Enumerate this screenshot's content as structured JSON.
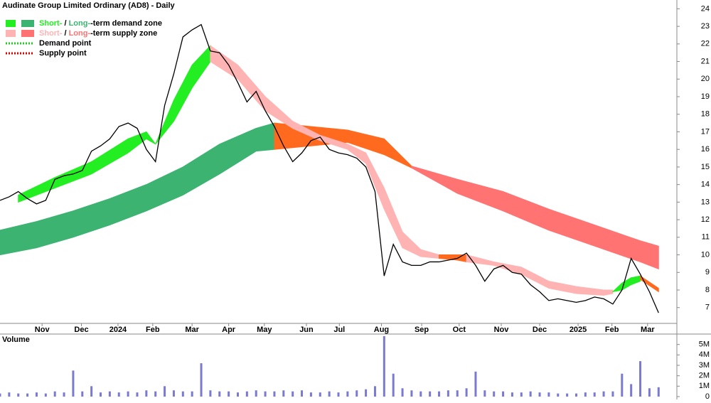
{
  "chart_data": [
    {
      "type": "line",
      "title": "Audinate Group Limited Ordinary (AD8) - Daily",
      "x": [
        0,
        1,
        2,
        3,
        4,
        5,
        6,
        7,
        8,
        9,
        10,
        11,
        12,
        13,
        14,
        15,
        16,
        17,
        18,
        19,
        20,
        21,
        22,
        23,
        24,
        25,
        26,
        27,
        28,
        29,
        30,
        31,
        32,
        33,
        34,
        35,
        36,
        37,
        38,
        39,
        40,
        41,
        42,
        43,
        44,
        45,
        46,
        47,
        48,
        49,
        50,
        51,
        52,
        53,
        54,
        55,
        56,
        57,
        58,
        59,
        60,
        61,
        62,
        63,
        64,
        65,
        66,
        67,
        68,
        69,
        70,
        71,
        72
      ],
      "values": [
        13.1,
        13.3,
        13.6,
        13.2,
        12.9,
        13.1,
        14.3,
        14.5,
        14.6,
        14.8,
        15.9,
        16.2,
        16.6,
        17.3,
        17.5,
        17.2,
        16.0,
        15.3,
        18.5,
        20.3,
        22.4,
        22.8,
        23.1,
        21.6,
        21.5,
        20.8,
        19.8,
        18.7,
        19.3,
        18.2,
        17.3,
        16.2,
        15.3,
        15.8,
        16.5,
        16.7,
        16.0,
        15.8,
        15.7,
        15.5,
        15.0,
        13.6,
        8.8,
        10.6,
        9.6,
        9.4,
        9.4,
        9.6,
        9.6,
        9.7,
        9.8,
        10.1,
        9.4,
        8.5,
        9.2,
        9.4,
        9.0,
        8.9,
        8.3,
        7.9,
        7.4,
        7.5,
        7.4,
        7.3,
        7.4,
        7.6,
        7.5,
        7.2,
        8.0,
        9.8,
        8.9,
        7.9,
        6.7
      ],
      "color": "#000000",
      "xlim": [
        0,
        74
      ],
      "ylim": [
        6.1,
        24.5
      ],
      "yticks": [
        7,
        8,
        9,
        10,
        11,
        12,
        13,
        14,
        15,
        16,
        17,
        18,
        19,
        20,
        21,
        22,
        23,
        24
      ],
      "xticks": [
        {
          "value": 4.6,
          "label": "Nov"
        },
        {
          "value": 8.9,
          "label": "Dec"
        },
        {
          "value": 12.9,
          "label": "2024"
        },
        {
          "value": 16.7,
          "label": "Feb"
        },
        {
          "value": 21.0,
          "label": "Mar"
        },
        {
          "value": 25.0,
          "label": "Apr"
        },
        {
          "value": 28.9,
          "label": "May"
        },
        {
          "value": 33.5,
          "label": "Jun"
        },
        {
          "value": 37.1,
          "label": "Jul"
        },
        {
          "value": 41.7,
          "label": "Aug"
        },
        {
          "value": 46.1,
          "label": "Sep"
        },
        {
          "value": 50.2,
          "label": "Oct"
        },
        {
          "value": 54.8,
          "label": "Nov"
        },
        {
          "value": 59.0,
          "label": "Dec"
        },
        {
          "value": 63.2,
          "label": "2025"
        },
        {
          "value": 66.9,
          "label": "Feb"
        },
        {
          "value": 70.8,
          "label": "Mar"
        }
      ],
      "zones": [
        {
          "color": "#3cb371",
          "x": [
            0,
            4,
            8,
            12,
            16,
            20,
            24,
            28,
            30
          ],
          "upper": [
            11.4,
            11.9,
            12.5,
            13.2,
            14.0,
            15.0,
            16.3,
            17.2,
            17.5
          ],
          "lower": [
            10.0,
            10.4,
            11.0,
            11.7,
            12.5,
            13.4,
            14.6,
            15.9,
            16.0
          ]
        },
        {
          "color": "#ff6a1f",
          "x": [
            30,
            34,
            38,
            42,
            45
          ],
          "upper": [
            17.5,
            17.3,
            17.1,
            16.6,
            15.05
          ],
          "lower": [
            16.0,
            16.2,
            16.4,
            15.7,
            14.95
          ]
        },
        {
          "color": "#ff7373",
          "x": [
            45,
            50,
            55,
            60,
            65,
            70,
            72
          ],
          "upper": [
            15.05,
            14.3,
            13.6,
            12.6,
            11.7,
            10.8,
            10.5
          ],
          "lower": [
            14.95,
            13.5,
            12.5,
            11.4,
            10.5,
            9.6,
            9.2
          ]
        },
        {
          "color": "#22ee22",
          "x": [
            2,
            6,
            10,
            14,
            16,
            17
          ],
          "upper": [
            13.4,
            14.4,
            15.3,
            16.6,
            17.0,
            16.3
          ],
          "lower": [
            13.0,
            13.8,
            14.6,
            15.8,
            16.6,
            16.3
          ]
        },
        {
          "color": "#22ee22",
          "x": [
            17,
            19,
            21,
            23
          ],
          "upper": [
            16.3,
            18.8,
            20.8,
            21.9
          ],
          "lower": [
            16.3,
            17.6,
            19.5,
            21.0
          ]
        },
        {
          "color": "#ffb3b3",
          "x": [
            23,
            26,
            29,
            32,
            35,
            38,
            40,
            42,
            44,
            46,
            48
          ],
          "upper": [
            21.9,
            20.8,
            19.0,
            17.6,
            16.8,
            16.3,
            15.8,
            13.8,
            11.3,
            10.3,
            10.0
          ],
          "lower": [
            21.0,
            20.0,
            18.2,
            17.2,
            16.5,
            16.0,
            15.2,
            12.6,
            10.4,
            9.9,
            9.8
          ]
        },
        {
          "color": "#ff6a1f",
          "x": [
            48,
            50,
            51
          ],
          "upper": [
            10.0,
            10.0,
            10.0
          ],
          "lower": [
            9.8,
            9.7,
            9.6
          ]
        },
        {
          "color": "#ffb3b3",
          "x": [
            51,
            54,
            57,
            60,
            63,
            66,
            67
          ],
          "upper": [
            10.0,
            9.6,
            9.3,
            8.5,
            8.2,
            8.0,
            8.0
          ],
          "lower": [
            9.6,
            9.4,
            8.9,
            8.1,
            7.8,
            7.7,
            7.8
          ]
        },
        {
          "color": "#22ee22",
          "x": [
            67,
            68,
            69,
            70
          ],
          "upper": [
            7.9,
            8.4,
            8.7,
            8.8
          ],
          "lower": [
            7.9,
            8.0,
            8.3,
            8.5
          ]
        },
        {
          "color": "#ff6a1f",
          "x": [
            70,
            72
          ],
          "upper": [
            8.8,
            8.1
          ],
          "lower": [
            8.6,
            7.9
          ]
        }
      ],
      "legend": [
        {
          "short": "Short-",
          "sep": " / ",
          "long": "Long-",
          "text": "-term demand zone",
          "colors": [
            "#22ee22",
            "#3cb371"
          ]
        },
        {
          "short": "Short-",
          "sep": " / ",
          "long": "Long-",
          "text": "-term supply zone",
          "colors": [
            "#ffb3b3",
            "#ff7373"
          ]
        },
        {
          "text": "Demand point",
          "color": "#22cc22"
        },
        {
          "text": "Supply point",
          "color": "#dd0000"
        }
      ]
    },
    {
      "type": "bar",
      "title": "Volume",
      "x": [
        0,
        1,
        2,
        3,
        4,
        5,
        6,
        7,
        8,
        9,
        10,
        11,
        12,
        13,
        14,
        15,
        16,
        17,
        18,
        19,
        20,
        21,
        22,
        23,
        24,
        25,
        26,
        27,
        28,
        29,
        30,
        31,
        32,
        33,
        34,
        35,
        36,
        37,
        38,
        39,
        40,
        41,
        42,
        43,
        44,
        45,
        46,
        47,
        48,
        49,
        50,
        51,
        52,
        53,
        54,
        55,
        56,
        57,
        58,
        59,
        60,
        61,
        62,
        63,
        64,
        65,
        66,
        67,
        68,
        69,
        70,
        71,
        72
      ],
      "values": [
        0.3,
        0.4,
        0.3,
        0.3,
        0.4,
        0.3,
        0.5,
        0.4,
        2.5,
        0.5,
        1.0,
        0.4,
        0.5,
        0.4,
        0.5,
        0.4,
        0.6,
        0.5,
        1.0,
        0.6,
        0.5,
        0.5,
        3.2,
        0.6,
        0.5,
        0.5,
        0.4,
        0.5,
        0.6,
        0.5,
        0.5,
        0.6,
        0.5,
        0.6,
        0.4,
        0.4,
        0.5,
        0.4,
        0.5,
        0.6,
        0.7,
        1.0,
        5.8,
        2.2,
        0.8,
        0.6,
        0.5,
        0.5,
        0.5,
        0.6,
        0.6,
        0.8,
        2.4,
        0.6,
        0.5,
        0.5,
        0.4,
        0.4,
        0.5,
        0.4,
        0.4,
        0.3,
        0.3,
        0.3,
        0.4,
        0.4,
        0.5,
        0.5,
        2.2,
        1.2,
        3.4,
        0.8,
        0.9
      ],
      "color": "#7a7ad0",
      "xlim": [
        0,
        74
      ],
      "ylim": [
        0,
        6.0
      ],
      "yticks": [
        0,
        {
          "value": 1,
          "label": "1M"
        },
        {
          "value": 2,
          "label": "2M"
        },
        {
          "value": 3,
          "label": "3M"
        },
        {
          "value": 4,
          "label": "4M"
        },
        {
          "value": 5,
          "label": "5M"
        }
      ]
    }
  ]
}
